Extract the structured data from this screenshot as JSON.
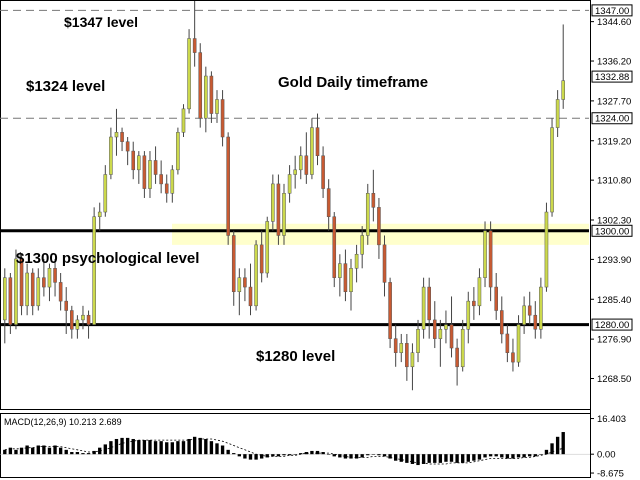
{
  "chart_data": [
    {
      "type": "candlestick",
      "title": "Gold Daily timeframe",
      "ylim": [
        1262,
        1349
      ],
      "y_ticks": [
        1344.6,
        1336.2,
        1327.7,
        1319.2,
        1310.8,
        1302.3,
        1293.9,
        1285.4,
        1276.9,
        1268.5
      ],
      "price_labels": [
        {
          "value": 1347.0,
          "label": "1347.00",
          "style": "dashed-level"
        },
        {
          "value": 1332.88,
          "label": "1332.88",
          "style": "current"
        },
        {
          "value": 1324.0,
          "label": "1324.00",
          "style": "dashed-level"
        },
        {
          "value": 1300.0,
          "label": "1300.00",
          "style": "solid-level"
        },
        {
          "value": 1280.0,
          "label": "1280.00",
          "style": "solid-level"
        }
      ],
      "levels": [
        {
          "value": 1347,
          "style": "dashed"
        },
        {
          "value": 1324,
          "style": "dashed"
        },
        {
          "value": 1300,
          "style": "thick"
        },
        {
          "value": 1280,
          "style": "thick"
        }
      ],
      "zone": {
        "from": 1297,
        "to": 1301.5,
        "color": "#ffffcc"
      },
      "annotations": [
        {
          "text": "$1347 level",
          "size": 14
        },
        {
          "text": "$1324 level",
          "size": 15
        },
        {
          "text": "Gold Daily timeframe",
          "size": 15
        },
        {
          "text": "$1300 psychological level",
          "size": 15
        },
        {
          "text": "$1280 level",
          "size": 15
        }
      ],
      "colors": {
        "up": "#ccd94c",
        "down": "#c85a32",
        "wick": "#444444"
      },
      "candles": [
        [
          1281,
          1292,
          1276,
          1290
        ],
        [
          1290,
          1291,
          1278,
          1280
        ],
        [
          1280,
          1296,
          1279,
          1294
        ],
        [
          1294,
          1295,
          1282,
          1284
        ],
        [
          1284,
          1293,
          1282,
          1291
        ],
        [
          1291,
          1292,
          1282,
          1284
        ],
        [
          1284,
          1292,
          1283,
          1290
        ],
        [
          1290,
          1294,
          1286,
          1288
        ],
        [
          1288,
          1293,
          1285,
          1292
        ],
        [
          1292,
          1294,
          1286,
          1289
        ],
        [
          1289,
          1291,
          1283,
          1285
        ],
        [
          1285,
          1288,
          1278,
          1283
        ],
        [
          1283,
          1284,
          1277,
          1279
        ],
        [
          1279,
          1282,
          1277,
          1281
        ],
        [
          1281,
          1284,
          1279,
          1282
        ],
        [
          1282,
          1283,
          1277,
          1280
        ],
        [
          1280,
          1305,
          1280,
          1303
        ],
        [
          1303,
          1306,
          1300,
          1304
        ],
        [
          1304,
          1314,
          1303,
          1312
        ],
        [
          1312,
          1322,
          1311,
          1320
        ],
        [
          1320,
          1326,
          1316,
          1321
        ],
        [
          1321,
          1322,
          1317,
          1319
        ],
        [
          1319,
          1320,
          1314,
          1317
        ],
        [
          1317,
          1319,
          1311,
          1313
        ],
        [
          1313,
          1317,
          1310,
          1316
        ],
        [
          1316,
          1317,
          1307,
          1309
        ],
        [
          1309,
          1317,
          1307,
          1315
        ],
        [
          1315,
          1318,
          1310,
          1312
        ],
        [
          1312,
          1315,
          1308,
          1310
        ],
        [
          1310,
          1312,
          1306,
          1308
        ],
        [
          1308,
          1314,
          1306,
          1313
        ],
        [
          1313,
          1322,
          1312,
          1321
        ],
        [
          1321,
          1327,
          1320,
          1326
        ],
        [
          1326,
          1343,
          1325,
          1341
        ],
        [
          1341,
          1349,
          1335,
          1338
        ],
        [
          1338,
          1340,
          1322,
          1324
        ],
        [
          1324,
          1335,
          1321,
          1333
        ],
        [
          1333,
          1334,
          1323,
          1325
        ],
        [
          1325,
          1330,
          1323,
          1328
        ],
        [
          1328,
          1330,
          1318,
          1320
        ],
        [
          1320,
          1321,
          1297,
          1299
        ],
        [
          1299,
          1300,
          1284,
          1287
        ],
        [
          1287,
          1292,
          1282,
          1290
        ],
        [
          1290,
          1292,
          1285,
          1288
        ],
        [
          1288,
          1293,
          1282,
          1284
        ],
        [
          1284,
          1298,
          1283,
          1297
        ],
        [
          1297,
          1300,
          1289,
          1291
        ],
        [
          1291,
          1303,
          1290,
          1302
        ],
        [
          1302,
          1312,
          1300,
          1310
        ],
        [
          1310,
          1312,
          1297,
          1299
        ],
        [
          1299,
          1310,
          1297,
          1308
        ],
        [
          1308,
          1314,
          1306,
          1312
        ],
        [
          1312,
          1316,
          1309,
          1313
        ],
        [
          1313,
          1318,
          1311,
          1316
        ],
        [
          1316,
          1321,
          1310,
          1312
        ],
        [
          1312,
          1324,
          1311,
          1322
        ],
        [
          1322,
          1325,
          1314,
          1316
        ],
        [
          1316,
          1318,
          1307,
          1309
        ],
        [
          1309,
          1311,
          1300,
          1303
        ],
        [
          1303,
          1304,
          1288,
          1290
        ],
        [
          1290,
          1295,
          1286,
          1293
        ],
        [
          1293,
          1296,
          1285,
          1287
        ],
        [
          1287,
          1294,
          1283,
          1292
        ],
        [
          1292,
          1297,
          1289,
          1295
        ],
        [
          1295,
          1301,
          1292,
          1299
        ],
        [
          1299,
          1310,
          1297,
          1308
        ],
        [
          1308,
          1313,
          1302,
          1305
        ],
        [
          1305,
          1307,
          1294,
          1297
        ],
        [
          1297,
          1299,
          1286,
          1289
        ],
        [
          1289,
          1290,
          1275,
          1277
        ],
        [
          1277,
          1280,
          1271,
          1274
        ],
        [
          1274,
          1278,
          1272,
          1276
        ],
        [
          1276,
          1278,
          1268,
          1271
        ],
        [
          1271,
          1276,
          1266,
          1274
        ],
        [
          1274,
          1281,
          1272,
          1279
        ],
        [
          1279,
          1290,
          1277,
          1288
        ],
        [
          1288,
          1290,
          1277,
          1281
        ],
        [
          1281,
          1285,
          1275,
          1277
        ],
        [
          1277,
          1281,
          1271,
          1279
        ],
        [
          1279,
          1283,
          1276,
          1280
        ],
        [
          1280,
          1286,
          1273,
          1275
        ],
        [
          1275,
          1277,
          1267,
          1271
        ],
        [
          1271,
          1281,
          1270,
          1279
        ],
        [
          1279,
          1287,
          1276,
          1285
        ],
        [
          1285,
          1288,
          1281,
          1284
        ],
        [
          1284,
          1292,
          1282,
          1290
        ],
        [
          1290,
          1302,
          1288,
          1300
        ],
        [
          1300,
          1302,
          1285,
          1288
        ],
        [
          1288,
          1291,
          1281,
          1283
        ],
        [
          1283,
          1286,
          1276,
          1278
        ],
        [
          1278,
          1280,
          1272,
          1274
        ],
        [
          1274,
          1277,
          1270,
          1272
        ],
        [
          1272,
          1282,
          1271,
          1280
        ],
        [
          1280,
          1286,
          1278,
          1284
        ],
        [
          1284,
          1287,
          1280,
          1282
        ],
        [
          1282,
          1285,
          1277,
          1279
        ],
        [
          1279,
          1290,
          1277,
          1288
        ],
        [
          1288,
          1306,
          1287,
          1304
        ],
        [
          1304,
          1324,
          1303,
          1322
        ],
        [
          1322,
          1330,
          1320,
          1328
        ],
        [
          1328,
          1344,
          1326,
          1332
        ]
      ]
    },
    {
      "type": "bar",
      "indicator_label": "MACD(12,26,9) 10.213 2.689",
      "ylim": [
        -10.5,
        18.5
      ],
      "y_ticks": [
        16.403,
        0.0,
        -8.675
      ],
      "y_tick_labels": [
        "16.403",
        "0.00",
        "-8.675"
      ],
      "histogram": [
        2,
        3,
        2,
        3,
        4,
        3,
        4,
        4,
        3,
        4,
        3,
        2,
        1,
        1,
        0.5,
        0.5,
        1.5,
        3,
        4.5,
        6,
        7,
        7.5,
        7.5,
        7,
        6.5,
        6.5,
        6.5,
        6,
        6,
        5.5,
        5.5,
        6,
        6,
        7,
        8,
        7.5,
        7,
        6,
        5,
        4,
        2,
        0.5,
        -1,
        -2,
        -2.5,
        -2.5,
        -2,
        -1.5,
        -1,
        -1,
        -0.5,
        -0.5,
        0,
        0.5,
        1,
        1.5,
        1.5,
        1,
        0,
        -1,
        -1.5,
        -2,
        -2,
        -2,
        -1.5,
        -0.5,
        0,
        -0.5,
        -1,
        -2,
        -3,
        -3.5,
        -4,
        -4.5,
        -5,
        -4.5,
        -4,
        -4,
        -4,
        -3.5,
        -3.5,
        -4,
        -4,
        -3.5,
        -3,
        -2.5,
        -1.5,
        -1,
        -1,
        -1.5,
        -2,
        -2,
        -1.5,
        -1.5,
        -1,
        -1,
        0,
        2,
        5,
        8,
        10.2
      ],
      "signal": [
        2,
        2.5,
        2.5,
        2.5,
        3,
        3,
        3.5,
        3.5,
        3.5,
        3.5,
        3.5,
        3,
        2.5,
        2,
        1.5,
        1,
        1,
        1.5,
        2,
        3,
        4,
        5,
        5.5,
        6,
        6.5,
        6.5,
        6.5,
        6.5,
        6.5,
        6.5,
        6.5,
        6.5,
        6.5,
        6.5,
        7,
        7,
        7,
        7,
        6.5,
        6,
        5,
        4,
        3,
        2,
        1,
        0,
        -0.5,
        -1,
        -1,
        -1,
        -1,
        -0.5,
        -0.5,
        0,
        0.5,
        0.5,
        0.5,
        0.5,
        0.5,
        0,
        -0.5,
        -1,
        -1.5,
        -1.5,
        -1.5,
        -1.5,
        -1,
        -1,
        -1,
        -1.5,
        -2,
        -2.5,
        -3,
        -3.5,
        -4,
        -4,
        -4.5,
        -4.5,
        -4.5,
        -4.5,
        -4,
        -4,
        -4,
        -4,
        -3.5,
        -3,
        -2.5,
        -2,
        -2,
        -2,
        -2,
        -2,
        -2,
        -1.5,
        -1.5,
        -1,
        -0.5,
        0,
        1,
        2,
        2.7
      ]
    }
  ]
}
